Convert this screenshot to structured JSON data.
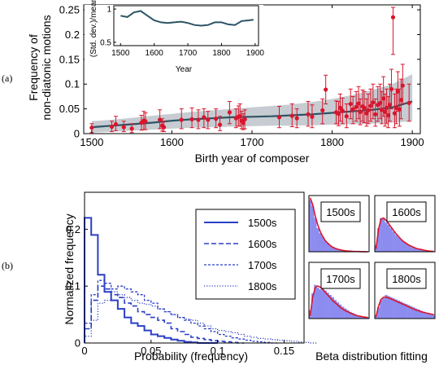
{
  "panel_labels": {
    "a": "(a)",
    "b": "(b)"
  },
  "chart_data": [
    {
      "type": "scatter",
      "xlabel": "Birth year of composer",
      "ylabel_line1": "Frequency of",
      "ylabel_line2": "non-diatonic motions",
      "xlim": [
        1490,
        1910
      ],
      "ylim": [
        0,
        0.26
      ],
      "xticks": [
        1500,
        1600,
        1700,
        1800,
        1900
      ],
      "yticks": [
        0,
        0.05,
        0.1,
        0.15,
        0.2,
        0.25
      ],
      "yticklabels": [
        "0",
        "0.05",
        "0.1",
        "0.15",
        "0.2",
        "0.25"
      ],
      "colors": {
        "points": "#d9152c",
        "trend": "#2c5466",
        "band": "#c6ccd1"
      },
      "points": [
        {
          "x": 1500,
          "y": 0.012,
          "lo": 0.002,
          "hi": 0.02
        },
        {
          "x": 1525,
          "y": 0.014,
          "lo": 0.004,
          "hi": 0.025
        },
        {
          "x": 1530,
          "y": 0.019,
          "lo": 0.006,
          "hi": 0.035
        },
        {
          "x": 1540,
          "y": 0.013,
          "lo": 0.004,
          "hi": 0.025
        },
        {
          "x": 1550,
          "y": 0.01,
          "lo": 0.002,
          "hi": 0.02
        },
        {
          "x": 1562,
          "y": 0.022,
          "lo": 0.007,
          "hi": 0.037
        },
        {
          "x": 1565,
          "y": 0.026,
          "lo": 0.008,
          "hi": 0.045
        },
        {
          "x": 1567,
          "y": 0.025,
          "lo": 0.008,
          "hi": 0.042
        },
        {
          "x": 1585,
          "y": 0.028,
          "lo": 0.01,
          "hi": 0.048
        },
        {
          "x": 1588,
          "y": 0.016,
          "lo": 0.005,
          "hi": 0.03
        },
        {
          "x": 1590,
          "y": 0.013,
          "lo": 0.004,
          "hi": 0.025
        },
        {
          "x": 1612,
          "y": 0.028,
          "lo": 0.01,
          "hi": 0.05
        },
        {
          "x": 1625,
          "y": 0.029,
          "lo": 0.012,
          "hi": 0.052
        },
        {
          "x": 1633,
          "y": 0.028,
          "lo": 0.01,
          "hi": 0.048
        },
        {
          "x": 1640,
          "y": 0.033,
          "lo": 0.012,
          "hi": 0.05
        },
        {
          "x": 1645,
          "y": 0.028,
          "lo": 0.01,
          "hi": 0.045
        },
        {
          "x": 1655,
          "y": 0.03,
          "lo": 0.012,
          "hi": 0.05
        },
        {
          "x": 1660,
          "y": 0.018,
          "lo": 0.006,
          "hi": 0.035
        },
        {
          "x": 1672,
          "y": 0.043,
          "lo": 0.02,
          "hi": 0.065
        },
        {
          "x": 1680,
          "y": 0.031,
          "lo": 0.012,
          "hi": 0.05
        },
        {
          "x": 1683,
          "y": 0.034,
          "lo": 0.015,
          "hi": 0.056
        },
        {
          "x": 1685,
          "y": 0.035,
          "lo": 0.015,
          "hi": 0.06
        },
        {
          "x": 1687,
          "y": 0.026,
          "lo": 0.01,
          "hi": 0.045
        },
        {
          "x": 1689,
          "y": 0.022,
          "lo": 0.008,
          "hi": 0.04
        },
        {
          "x": 1691,
          "y": 0.029,
          "lo": 0.01,
          "hi": 0.048
        },
        {
          "x": 1734,
          "y": 0.033,
          "lo": 0.012,
          "hi": 0.055
        },
        {
          "x": 1750,
          "y": 0.036,
          "lo": 0.014,
          "hi": 0.06
        },
        {
          "x": 1756,
          "y": 0.031,
          "lo": 0.012,
          "hi": 0.05
        },
        {
          "x": 1770,
          "y": 0.039,
          "lo": 0.015,
          "hi": 0.065
        },
        {
          "x": 1775,
          "y": 0.034,
          "lo": 0.012,
          "hi": 0.058
        },
        {
          "x": 1788,
          "y": 0.047,
          "lo": 0.02,
          "hi": 0.07
        },
        {
          "x": 1792,
          "y": 0.089,
          "lo": 0.06,
          "hi": 0.118
        },
        {
          "x": 1805,
          "y": 0.043,
          "lo": 0.02,
          "hi": 0.066
        },
        {
          "x": 1808,
          "y": 0.04,
          "lo": 0.016,
          "hi": 0.065
        },
        {
          "x": 1810,
          "y": 0.052,
          "lo": 0.025,
          "hi": 0.08
        },
        {
          "x": 1813,
          "y": 0.046,
          "lo": 0.02,
          "hi": 0.072
        },
        {
          "x": 1818,
          "y": 0.035,
          "lo": 0.012,
          "hi": 0.06
        },
        {
          "x": 1823,
          "y": 0.06,
          "lo": 0.03,
          "hi": 0.09
        },
        {
          "x": 1826,
          "y": 0.049,
          "lo": 0.02,
          "hi": 0.075
        },
        {
          "x": 1830,
          "y": 0.054,
          "lo": 0.025,
          "hi": 0.085
        },
        {
          "x": 1833,
          "y": 0.061,
          "lo": 0.03,
          "hi": 0.095
        },
        {
          "x": 1835,
          "y": 0.044,
          "lo": 0.018,
          "hi": 0.07
        },
        {
          "x": 1838,
          "y": 0.055,
          "lo": 0.025,
          "hi": 0.088
        },
        {
          "x": 1840,
          "y": 0.052,
          "lo": 0.022,
          "hi": 0.085
        },
        {
          "x": 1843,
          "y": 0.041,
          "lo": 0.015,
          "hi": 0.07
        },
        {
          "x": 1845,
          "y": 0.047,
          "lo": 0.02,
          "hi": 0.08
        },
        {
          "x": 1848,
          "y": 0.056,
          "lo": 0.025,
          "hi": 0.09
        },
        {
          "x": 1851,
          "y": 0.063,
          "lo": 0.03,
          "hi": 0.1
        },
        {
          "x": 1854,
          "y": 0.039,
          "lo": 0.015,
          "hi": 0.07
        },
        {
          "x": 1857,
          "y": 0.058,
          "lo": 0.025,
          "hi": 0.095
        },
        {
          "x": 1860,
          "y": 0.062,
          "lo": 0.03,
          "hi": 0.1
        },
        {
          "x": 1862,
          "y": 0.048,
          "lo": 0.02,
          "hi": 0.085
        },
        {
          "x": 1864,
          "y": 0.071,
          "lo": 0.035,
          "hi": 0.115
        },
        {
          "x": 1866,
          "y": 0.044,
          "lo": 0.015,
          "hi": 0.08
        },
        {
          "x": 1868,
          "y": 0.052,
          "lo": 0.02,
          "hi": 0.09
        },
        {
          "x": 1870,
          "y": 0.037,
          "lo": 0.012,
          "hi": 0.075
        },
        {
          "x": 1872,
          "y": 0.058,
          "lo": 0.025,
          "hi": 0.1
        },
        {
          "x": 1874,
          "y": 0.09,
          "lo": 0.05,
          "hi": 0.13
        },
        {
          "x": 1876,
          "y": 0.235,
          "lo": 0.16,
          "hi": 0.255
        },
        {
          "x": 1878,
          "y": 0.041,
          "lo": 0.012,
          "hi": 0.08
        },
        {
          "x": 1880,
          "y": 0.052,
          "lo": 0.02,
          "hi": 0.09
        },
        {
          "x": 1882,
          "y": 0.085,
          "lo": 0.045,
          "hi": 0.125
        },
        {
          "x": 1884,
          "y": 0.049,
          "lo": 0.015,
          "hi": 0.09
        },
        {
          "x": 1886,
          "y": 0.068,
          "lo": 0.03,
          "hi": 0.11
        },
        {
          "x": 1888,
          "y": 0.097,
          "lo": 0.06,
          "hi": 0.14
        },
        {
          "x": 1896,
          "y": 0.062,
          "lo": 0.025,
          "hi": 0.1
        }
      ],
      "trend": {
        "x": [
          1500,
          1525,
          1550,
          1575,
          1600,
          1625,
          1650,
          1675,
          1700,
          1725,
          1750,
          1775,
          1800,
          1825,
          1850,
          1875,
          1900
        ],
        "y": [
          0.013,
          0.016,
          0.019,
          0.022,
          0.026,
          0.029,
          0.031,
          0.033,
          0.034,
          0.035,
          0.037,
          0.039,
          0.042,
          0.045,
          0.048,
          0.053,
          0.065
        ],
        "lo": [
          0.002,
          0.004,
          0.006,
          0.008,
          0.01,
          0.012,
          0.013,
          0.014,
          0.015,
          0.016,
          0.016,
          0.017,
          0.018,
          0.019,
          0.02,
          0.022,
          0.025
        ],
        "hi": [
          0.025,
          0.028,
          0.032,
          0.036,
          0.04,
          0.044,
          0.047,
          0.05,
          0.053,
          0.056,
          0.059,
          0.064,
          0.07,
          0.078,
          0.088,
          0.1,
          0.12
        ]
      },
      "inset": {
        "type": "line",
        "ylabel": "(Std. dev.)/mean",
        "xlabel": "Year",
        "xlim": [
          1480,
          1910
        ],
        "ylim": [
          0.45,
          1.05
        ],
        "xticks": [
          1500,
          1600,
          1700,
          1800,
          1900
        ],
        "yticks": [
          0.5,
          1
        ],
        "yticklabels": [
          "0.5",
          "1"
        ],
        "x": [
          1500,
          1520,
          1540,
          1560,
          1580,
          1600,
          1620,
          1640,
          1660,
          1680,
          1700,
          1720,
          1740,
          1760,
          1780,
          1800,
          1820,
          1840,
          1860,
          1880,
          1895
        ],
        "y": [
          0.9,
          0.88,
          0.95,
          0.97,
          0.9,
          0.83,
          0.8,
          0.79,
          0.8,
          0.81,
          0.79,
          0.76,
          0.75,
          0.76,
          0.8,
          0.8,
          0.77,
          0.76,
          0.82,
          0.83,
          0.84
        ]
      }
    },
    {
      "type": "line",
      "xlabel": "Probability (frequency)",
      "ylabel": "Normalized frequency",
      "xlim": [
        0,
        0.165
      ],
      "ylim": [
        0,
        0.265
      ],
      "xticks": [
        0,
        0.05,
        0.1,
        0.15
      ],
      "xticklabels": [
        "0",
        "0.05",
        "0.1",
        "0.15"
      ],
      "yticks": [
        0,
        0.1,
        0.2
      ],
      "yticklabels": [
        "0",
        "0.1",
        "0.2"
      ],
      "bin_width": 0.005,
      "color": "#2b3fc6",
      "series": [
        {
          "name": "1500s",
          "dash": "solid",
          "values": [
            0.22,
            0.19,
            0.12,
            0.09,
            0.075,
            0.06,
            0.045,
            0.035,
            0.03,
            0.022,
            0.015,
            0.012,
            0.009,
            0.006,
            0.004,
            0.002,
            0.001,
            0,
            0,
            0
          ]
        },
        {
          "name": "1600s",
          "dash": "dash",
          "values": [
            0.025,
            0.075,
            0.1,
            0.095,
            0.085,
            0.08,
            0.07,
            0.065,
            0.055,
            0.05,
            0.045,
            0.04,
            0.035,
            0.025,
            0.02,
            0.015,
            0.01,
            0.008,
            0.006,
            0.004,
            0.003,
            0.002,
            0.001,
            0
          ]
        },
        {
          "name": "1700s",
          "dash": "shortdash",
          "values": [
            0.035,
            0.085,
            0.11,
            0.105,
            0.095,
            0.1,
            0.095,
            0.09,
            0.085,
            0.075,
            0.07,
            0.06,
            0.055,
            0.05,
            0.045,
            0.04,
            0.035,
            0.03,
            0.025,
            0.02,
            0.015,
            0.012,
            0.009,
            0.007,
            0.005,
            0.003,
            0.002,
            0.001,
            0
          ]
        },
        {
          "name": "1800s",
          "dash": "dot",
          "values": [
            0.012,
            0.04,
            0.07,
            0.075,
            0.09,
            0.085,
            0.08,
            0.075,
            0.07,
            0.068,
            0.065,
            0.06,
            0.055,
            0.05,
            0.045,
            0.042,
            0.04,
            0.035,
            0.03,
            0.025,
            0.022,
            0.02,
            0.018,
            0.015,
            0.012,
            0.01,
            0.008,
            0.007,
            0.006,
            0.005,
            0.004,
            0.003,
            0.002,
            0.001,
            0
          ]
        }
      ]
    },
    {
      "type": "bar",
      "title": "Beta distribution fitting",
      "fit_color": "#d9152c",
      "bar_color": "#8c8cf0",
      "panels": [
        {
          "label": "1500s",
          "bars": [
            0.92,
            0.82,
            0.6,
            0.42,
            0.33,
            0.27,
            0.2,
            0.16,
            0.12,
            0.09,
            0.07,
            0.05,
            0.04,
            0.03,
            0.02,
            0.01,
            0.01,
            0,
            0,
            0,
            0,
            0,
            0,
            0
          ],
          "fit": [
            0.96,
            0.84,
            0.64,
            0.48,
            0.36,
            0.27,
            0.2,
            0.15,
            0.11,
            0.08,
            0.06,
            0.045,
            0.033,
            0.024,
            0.018,
            0.013,
            0.01,
            0.007,
            0.005,
            0.004,
            0.003,
            0.002,
            0.001,
            0.001
          ]
        },
        {
          "label": "1600s",
          "bars": [
            0.12,
            0.42,
            0.6,
            0.58,
            0.52,
            0.48,
            0.42,
            0.36,
            0.3,
            0.26,
            0.22,
            0.19,
            0.16,
            0.13,
            0.1,
            0.08,
            0.06,
            0.05,
            0.04,
            0.03,
            0.02,
            0.01,
            0.01,
            0
          ],
          "fit": [
            0.05,
            0.4,
            0.58,
            0.6,
            0.56,
            0.5,
            0.44,
            0.38,
            0.32,
            0.27,
            0.22,
            0.18,
            0.15,
            0.12,
            0.1,
            0.08,
            0.06,
            0.05,
            0.04,
            0.03,
            0.02,
            0.015,
            0.01,
            0.007
          ]
        },
        {
          "label": "1700s",
          "bars": [
            0.15,
            0.45,
            0.6,
            0.55,
            0.52,
            0.55,
            0.5,
            0.46,
            0.42,
            0.38,
            0.33,
            0.29,
            0.25,
            0.21,
            0.18,
            0.15,
            0.12,
            0.1,
            0.08,
            0.06,
            0.05,
            0.04,
            0.03,
            0.02
          ],
          "fit": [
            0.05,
            0.38,
            0.55,
            0.58,
            0.56,
            0.52,
            0.47,
            0.42,
            0.37,
            0.32,
            0.28,
            0.24,
            0.2,
            0.17,
            0.14,
            0.12,
            0.1,
            0.08,
            0.06,
            0.05,
            0.04,
            0.03,
            0.025,
            0.02
          ]
        },
        {
          "label": "1800s",
          "bars": [
            0.06,
            0.2,
            0.33,
            0.36,
            0.42,
            0.4,
            0.38,
            0.36,
            0.34,
            0.32,
            0.3,
            0.28,
            0.26,
            0.24,
            0.22,
            0.2,
            0.18,
            0.16,
            0.14,
            0.12,
            0.1,
            0.09,
            0.08,
            0.07
          ],
          "fit": [
            0.03,
            0.22,
            0.34,
            0.38,
            0.38,
            0.37,
            0.35,
            0.33,
            0.31,
            0.29,
            0.27,
            0.25,
            0.23,
            0.21,
            0.19,
            0.17,
            0.15,
            0.14,
            0.12,
            0.11,
            0.1,
            0.09,
            0.08,
            0.07
          ]
        }
      ]
    }
  ]
}
